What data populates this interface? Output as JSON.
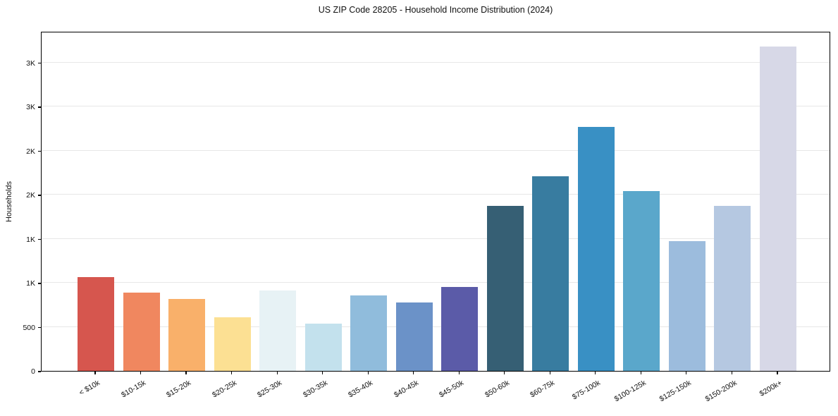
{
  "chart_data": {
    "type": "bar",
    "title": "US ZIP Code 28205 - Household Income Distribution (2024)",
    "xlabel": "",
    "ylabel": "Households",
    "categories": [
      "< $10k",
      "$10-15k",
      "$15-20k",
      "$20-25k",
      "$25-30k",
      "$30-35k",
      "$35-40k",
      "$40-45k",
      "$45-50k",
      "$50-60k",
      "$60-75k",
      "$75-100k",
      "$100-125k",
      "$125-150k",
      "$150-200k",
      "$200k+"
    ],
    "values": [
      1065,
      890,
      820,
      610,
      910,
      540,
      855,
      775,
      955,
      1870,
      2210,
      2770,
      2040,
      1470,
      1870,
      3680
    ],
    "bar_colors": [
      "#d6564e",
      "#f0875f",
      "#f9b06a",
      "#fce093",
      "#e7f2f5",
      "#c3e1ed",
      "#90bcdc",
      "#6b92c8",
      "#5b5ba8",
      "#365f74",
      "#387ca0",
      "#3990c4",
      "#5aa7cb",
      "#9cbcdd",
      "#b5c8e1",
      "#d7d8e7"
    ],
    "yticks": {
      "values": [
        0,
        500,
        1000,
        1500,
        2000,
        2500,
        3000,
        3500
      ],
      "labels": [
        "0",
        "500",
        "1K",
        "1K",
        "2K",
        "2K",
        "3K",
        "3K"
      ]
    },
    "ylim": [
      0,
      3856
    ],
    "grid": "horizontal",
    "legend": "none",
    "x_tick_rotation_deg": 30,
    "background_color": "#ffffff",
    "spine_color": "#000000",
    "gridline_color": "#e7e7e7",
    "text_color": "#111111"
  }
}
